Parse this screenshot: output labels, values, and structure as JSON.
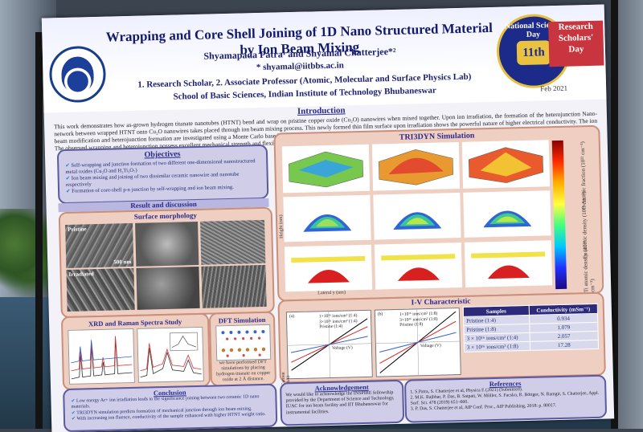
{
  "header": {
    "title": "Wrapping and Core Shell Joining of 1D Nano Structured Material by Ion Beam Mixing",
    "authors": "Shyamapada Patra¹ and Shyamal Chatterjee*²",
    "email": "* shyamal@iitbbs.ac.in",
    "affiliation_1": "1. Research Scholar, 2. Associate Professor (Atomic, Molecular and Surface Physics Lab)",
    "affiliation_2": "School of Basic Sciences, Indian Institute of Technology Bhubaneswar",
    "badge_text": "National Science Day",
    "badge_number": "11th",
    "badge_side": [
      "Research",
      "Scholars'",
      "Day"
    ],
    "date": "Feb 2021"
  },
  "introduction": {
    "title": "Introduction",
    "text": "This work demonstrates how as-grown hydrogen titanate nanotubes (HTNT) bend and wrap on pristine copper oxide (Cu₂O) nanowires when mixed together. Upon ion irradiation, the formation of the heterojunction Nano-network between wrapped HTNT onto Cu₂O nanowires takes placed through ion beam mixing process. This newly formed thin film surface upon irradiation shows the powerful nature of higher electrical conductivity. The ion beam modification and heterojunction formation are investigated using a Monte Carlo based 3D state-of-the-art simulation, which emphasize that sputtering and ion-beam mixing play crucial role to form such nano-network. The observed wrapping and heterojunction possess excellent mechanical strength and flexibility, which further allows it to use to fabricate flexible electronic device."
  },
  "objectives": {
    "title": "Objectives",
    "items": [
      "Self-wrapping and junction formation of two different one-dimensional nanostructured metal oxides (Cu₂O and H₂Ti₃O₇)",
      "Ion beam mixing and joining of two dissimilar ceramic nanowire and nanotube respectively",
      "Formation of core-shell p-n junction by self-wrapping and ion beam mixing."
    ]
  },
  "results": {
    "title": "Result and discussion",
    "surface_morphology": "Surface morphology",
    "label_pristine": "Pristine",
    "label_irradiated": "Irradiated",
    "scale_bar": "500 nm"
  },
  "xrd": {
    "title": "XRD and Raman Spectra Study"
  },
  "dft": {
    "title": "DFT Simulation",
    "text": "we have performed DFT simulations by placing hydrogen titanate on copper oxide at 2 Å distance."
  },
  "conclusion": {
    "title": "Conclusion",
    "items": [
      "Low energy Ar+ ion irradiation leads to the significance joining between two ceramic 1D nano materials.",
      "TRI3DYN simulation predicts formation of mechanical junction through ion beam mixing.",
      "With increasing ion fluence, conductivity of the sample enhanced with higher HTNT weight ratio."
    ]
  },
  "tri3dyn": {
    "title": "TRI3DYN Simulation",
    "cbar_labels": [
      "O Atomic fraction (10²² cm⁻³)",
      "Cu atomic density (10²² cm⁻³)",
      "Ti atomic density (10²² cm⁻³)"
    ],
    "ylabel": "Height (nm)",
    "xlabel": "Lateral y (nm)"
  },
  "iv": {
    "title": "I-V Characteristic",
    "panel_a": "(a)",
    "panel_b": "(b)",
    "legend_a": [
      "1×10¹⁶ ions/cm² (1:4)",
      "3×10¹⁶ ions/cm² (1:4)",
      "Pristine (1:4)"
    ],
    "legend_b": [
      "1×10¹⁶ ions/cm² (1:8)",
      "3×10¹⁶ ions/cm² (1:8)",
      "Pristine (1:8)"
    ],
    "xlabel": "Voltage (V)",
    "ylabel": "Current (mA)",
    "yticks_a": [
      "0.006",
      "0.004",
      "0.002",
      "0.000",
      "-0.002",
      "-0.004",
      "-0.006"
    ],
    "yticks_b": [
      "0.006",
      "0.004",
      "0.002",
      "0.000",
      "-0.002",
      "-0.004",
      "-0.006"
    ],
    "table": {
      "headers": [
        "Samples",
        "Conductivity (mSm⁻¹)"
      ],
      "rows": [
        [
          "Pristine (1:4)",
          "0.934"
        ],
        [
          "Pristine (1:8)",
          "1.079"
        ],
        [
          "3 × 10¹⁶ ions/cm² (1:4)",
          "2.057"
        ],
        [
          "3 × 10¹⁶ ions/cm² (1:8)",
          "17.28"
        ]
      ]
    }
  },
  "acknowledgement": {
    "title": "Acknowledgement",
    "text": "We would like to acknowledge the INSPIRE fellowship provided by the Department of Science and Technology, IUAC for ion beam facility and IIT Bhubaneswar for instrumental facilities."
  },
  "references": {
    "title": "References",
    "items": [
      "1. S.Patra, S. Chatterjee et al, Physica E (2021) (Submitted).",
      "2. M.K. Rajbhar, P. Das, B. Satpati, W. Möller, S. Facsko, R. Böttger, N. Ramgir, S. Chatterjee, Appl. Surf. Sci. 478 (2019) 651–660.",
      "3. P. Das, S. Chatterjee et al, AIP Conf. Proc., AIP Publishing, 2018: p. 80017."
    ]
  }
}
